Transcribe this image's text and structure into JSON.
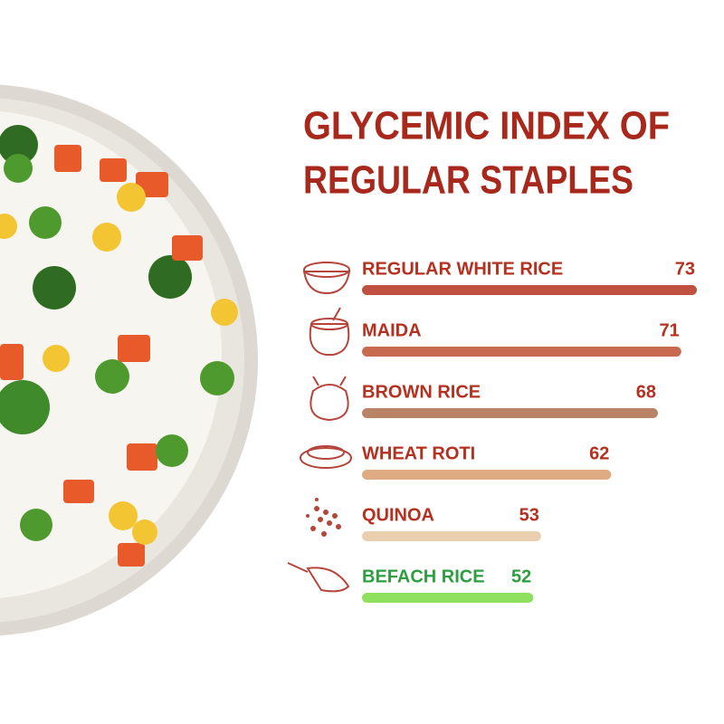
{
  "chart_data": {
    "type": "bar",
    "orientation": "horizontal",
    "title": [
      "GLYCEMIC INDEX OF",
      "REGULAR STAPLES"
    ],
    "categories": [
      "REGULAR WHITE RICE",
      "MAIDA",
      "BROWN RICE",
      "WHEAT ROTI",
      "QUINOA",
      "BEFACH RICE"
    ],
    "values": [
      73,
      71,
      68,
      62,
      53,
      52
    ],
    "colors": [
      "#c0503f",
      "#c86a4f",
      "#b98465",
      "#dfab82",
      "#e9cfb0",
      "#8fe05f"
    ],
    "label_colors": [
      "#b5301f",
      "#b5301f",
      "#b5301f",
      "#b5301f",
      "#b5301f",
      "#2e9e3e"
    ],
    "xlim": [
      30,
      73
    ]
  }
}
